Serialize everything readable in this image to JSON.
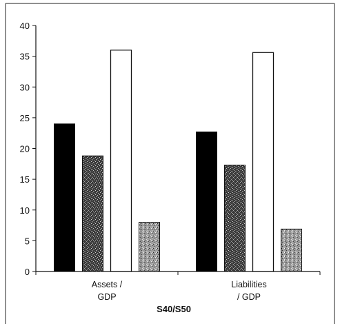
{
  "chart_data": {
    "type": "bar",
    "categories": [
      [
        "Assets /",
        "GDP"
      ],
      [
        "Liabilities",
        "/ GDP"
      ]
    ],
    "series": [
      {
        "values": [
          24,
          22.7
        ],
        "fill": "#000000",
        "pattern": "solid"
      },
      {
        "values": [
          18.8,
          17.3
        ],
        "fill": "#444444",
        "pattern": "dark-speckle"
      },
      {
        "values": [
          36,
          35.6
        ],
        "fill": "#ffffff",
        "pattern": "none"
      },
      {
        "values": [
          8,
          6.9
        ],
        "fill": "#888888",
        "pattern": "light-speckle"
      }
    ],
    "xlabel": "S40/S50",
    "ylabel": "",
    "title": "",
    "ylim": [
      0,
      40
    ],
    "yticks": [
      0,
      5,
      10,
      15,
      20,
      25,
      30,
      35,
      40
    ],
    "grid": false,
    "legend": "none"
  }
}
